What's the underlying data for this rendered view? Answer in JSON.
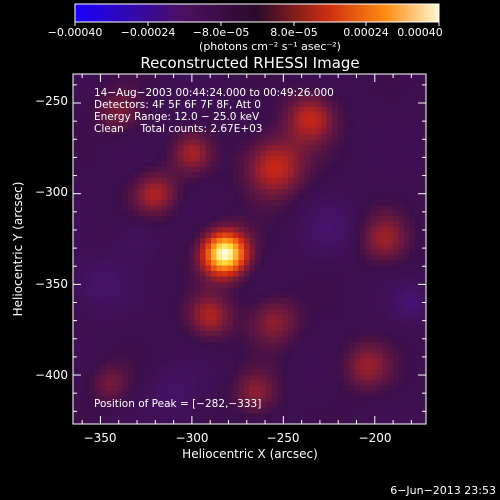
{
  "chart_data": {
    "type": "heatmap",
    "title": "Reconstructed RHESSI Image",
    "xlabel": "Heliocentric X (arcsec)",
    "ylabel": "Heliocentric Y (arcsec)",
    "xlim": [
      -365,
      -172
    ],
    "ylim": [
      -427,
      -234
    ],
    "x_ticks": [
      -350,
      -300,
      -250,
      -200
    ],
    "x_tick_labels": [
      "−350",
      "−300",
      "−250",
      "−200"
    ],
    "y_ticks": [
      -250,
      -300,
      -350,
      -400
    ],
    "y_tick_labels": [
      "−250",
      "−300",
      "−350",
      "−400"
    ],
    "colorbar": {
      "range": [
        -0.0004,
        0.0004
      ],
      "tick_labels": [
        "−0.00040",
        "−0.00024",
        "−8.0e−05",
        "8.0e−05",
        "0.00024",
        "0.00040"
      ],
      "units": "(photons cm⁻² s⁻¹ asec⁻²)"
    },
    "annotations": [
      "14−Aug−2003 00:44:24.000 to 00:49:26.000",
      "Detectors: 4F 5F 6F 7F 8F, Att 0",
      "Energy Range: 12.0 − 25.0 keV",
      "Clean     Total counts: 2.67E+03"
    ],
    "peak_label": "Position of Peak = [−282,−333]",
    "peak": {
      "x": -282,
      "y": -333
    },
    "sources": [
      {
        "x": -282,
        "y": -333,
        "amplitude": 1.0,
        "sigma": 9
      },
      {
        "x": -255,
        "y": -285,
        "amplitude": 0.45,
        "sigma": 12
      },
      {
        "x": -235,
        "y": -258,
        "amplitude": 0.4,
        "sigma": 10
      },
      {
        "x": -320,
        "y": -300,
        "amplitude": 0.35,
        "sigma": 9
      },
      {
        "x": -300,
        "y": -278,
        "amplitude": 0.3,
        "sigma": 8
      },
      {
        "x": -290,
        "y": -368,
        "amplitude": 0.35,
        "sigma": 9
      },
      {
        "x": -255,
        "y": -370,
        "amplitude": 0.3,
        "sigma": 10
      },
      {
        "x": -195,
        "y": -325,
        "amplitude": 0.3,
        "sigma": 10
      },
      {
        "x": -205,
        "y": -395,
        "amplitude": 0.3,
        "sigma": 10
      },
      {
        "x": -340,
        "y": -255,
        "amplitude": 0.25,
        "sigma": 9
      },
      {
        "x": -265,
        "y": -410,
        "amplitude": 0.28,
        "sigma": 9
      },
      {
        "x": -345,
        "y": -405,
        "amplitude": 0.22,
        "sigma": 8
      },
      {
        "x": -350,
        "y": -350,
        "amplitude": -0.25,
        "sigma": 10
      },
      {
        "x": -225,
        "y": -320,
        "amplitude": -0.22,
        "sigma": 10
      },
      {
        "x": -180,
        "y": -360,
        "amplitude": -0.3,
        "sigma": 7
      },
      {
        "x": -310,
        "y": -410,
        "amplitude": -0.2,
        "sigma": 10
      },
      {
        "x": -330,
        "y": -325,
        "amplitude": -0.15,
        "sigma": 8
      }
    ],
    "grid": false
  },
  "footer": {
    "date_label": "6−Jun−2013 23:53"
  }
}
